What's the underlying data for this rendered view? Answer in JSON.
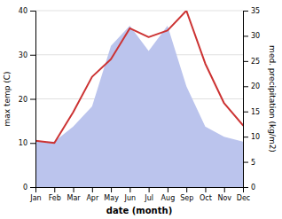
{
  "chart_data": {
    "type": "line",
    "xlabel": "date (month)",
    "ylabel": "max temp (C)",
    "y2label": "med. precipitation (kg/m2)",
    "categories": [
      "Jan",
      "Feb",
      "Mar",
      "Apr",
      "May",
      "Jun",
      "Jul",
      "Aug",
      "Sep",
      "Oct",
      "Nov",
      "Dec"
    ],
    "series": [
      {
        "type": "area",
        "color": "#bbc4ed",
        "axis": "y2",
        "values": [
          9,
          9,
          12,
          16,
          28,
          32,
          27,
          32,
          20,
          12,
          10,
          9
        ]
      },
      {
        "type": "line",
        "color": "#cc3333",
        "values": [
          10.5,
          10.0,
          17.0,
          25.0,
          29.0,
          36.0,
          34.0,
          35.5,
          40.0,
          28.0,
          19.0,
          14.0
        ]
      }
    ],
    "ylim": [
      0,
      40
    ],
    "yticks": [
      0,
      10,
      20,
      30,
      40
    ],
    "y2lim": [
      0,
      35
    ],
    "y2ticks": [
      0,
      5,
      10,
      15,
      20,
      25,
      30,
      35
    ],
    "grid": true
  }
}
